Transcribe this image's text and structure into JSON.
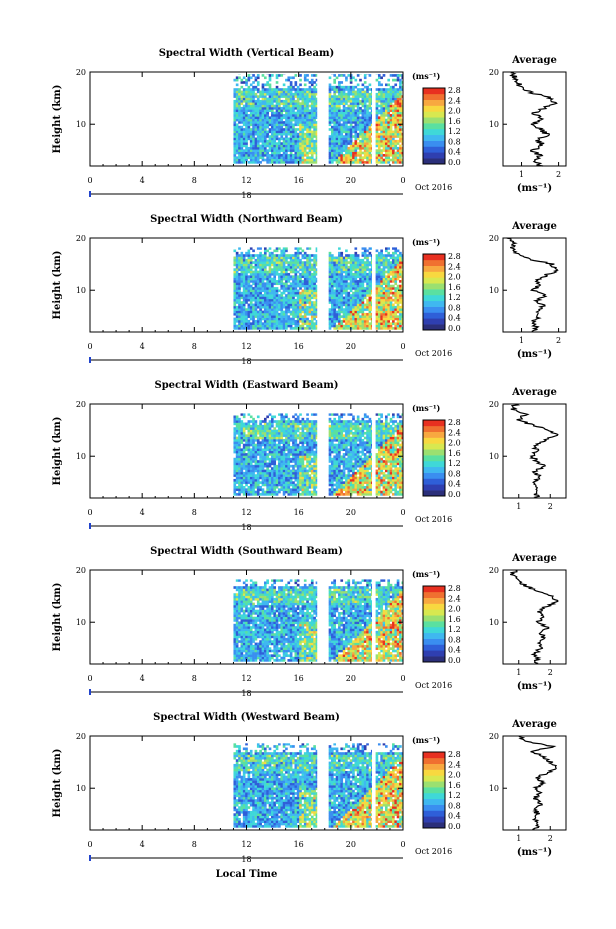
{
  "chart_data": [
    {
      "type": "heatmap",
      "title": "Spectral Width (Vertical Beam)",
      "ylabel": "Height (km)",
      "xticks": [
        "0",
        "4",
        "8",
        "12",
        "16",
        "20",
        "0"
      ],
      "xlim": [
        0,
        24
      ],
      "ylim": [
        2,
        20
      ],
      "yticks": [
        "20",
        "10"
      ],
      "date_label": "18",
      "month_label": "Oct 2016",
      "colorbar": {
        "unit": "(ms⁻¹)",
        "ticks": [
          "2.8",
          "2.4",
          "2.0",
          "1.6",
          "1.2",
          "0.8",
          "0.4",
          "0.0"
        ],
        "range": [
          0,
          2.8
        ]
      },
      "average": {
        "title": "Average",
        "xlabel": "(ms⁻¹)",
        "xticks": [
          "1",
          "2"
        ],
        "xlim": [
          0.5,
          2.2
        ],
        "yticks": [
          "20",
          "10"
        ],
        "profile": [
          [
            1.5,
            2
          ],
          [
            1.4,
            3
          ],
          [
            1.5,
            4
          ],
          [
            1.3,
            5
          ],
          [
            1.6,
            6
          ],
          [
            1.4,
            7
          ],
          [
            1.7,
            8
          ],
          [
            1.5,
            9
          ],
          [
            1.3,
            10
          ],
          [
            1.6,
            11
          ],
          [
            1.3,
            12
          ],
          [
            1.6,
            13
          ],
          [
            1.9,
            14
          ],
          [
            1.8,
            15
          ],
          [
            1.3,
            16
          ],
          [
            1.0,
            17
          ],
          [
            0.9,
            18
          ],
          [
            0.8,
            19
          ],
          [
            0.8,
            20
          ]
        ]
      }
    },
    {
      "type": "heatmap",
      "title": "Spectral Width (Northward Beam)",
      "ylabel": "Height (km)",
      "xticks": [
        "0",
        "4",
        "8",
        "12",
        "16",
        "20",
        "0"
      ],
      "xlim": [
        0,
        24
      ],
      "ylim": [
        2,
        20
      ],
      "yticks": [
        "20",
        "10"
      ],
      "date_label": "18",
      "month_label": "Oct 2016",
      "colorbar": {
        "unit": "(ms⁻¹)",
        "ticks": [
          "2.8",
          "2.4",
          "2.0",
          "1.6",
          "1.2",
          "0.8",
          "0.4",
          "0.0"
        ],
        "range": [
          0,
          2.8
        ]
      },
      "average": {
        "title": "Average",
        "xlabel": "(ms⁻¹)",
        "xticks": [
          "1",
          "2"
        ],
        "xlim": [
          0.5,
          2.2
        ],
        "yticks": [
          "20",
          "10"
        ],
        "profile": [
          [
            1.3,
            2
          ],
          [
            1.4,
            3
          ],
          [
            1.3,
            4
          ],
          [
            1.5,
            5
          ],
          [
            1.4,
            6
          ],
          [
            1.6,
            7
          ],
          [
            1.4,
            8
          ],
          [
            1.6,
            9
          ],
          [
            1.3,
            10
          ],
          [
            1.5,
            11
          ],
          [
            1.4,
            12
          ],
          [
            1.7,
            13
          ],
          [
            2.0,
            14
          ],
          [
            1.8,
            15
          ],
          [
            1.2,
            16
          ],
          [
            0.9,
            17
          ],
          [
            0.7,
            18
          ],
          [
            0.8,
            19
          ],
          [
            0.6,
            20
          ]
        ]
      }
    },
    {
      "type": "heatmap",
      "title": "Spectral Width (Eastward Beam)",
      "ylabel": "Height (km)",
      "xticks": [
        "0",
        "4",
        "8",
        "12",
        "16",
        "20",
        "0"
      ],
      "xlim": [
        0,
        24
      ],
      "ylim": [
        2,
        20
      ],
      "yticks": [
        "20",
        "10"
      ],
      "date_label": "18",
      "month_label": "Oct 2016",
      "colorbar": {
        "unit": "(ms⁻¹)",
        "ticks": [
          "2.8",
          "2.4",
          "2.0",
          "1.6",
          "1.2",
          "0.8",
          "0.4",
          "0.0"
        ],
        "range": [
          0,
          2.8
        ]
      },
      "average": {
        "title": "Average",
        "xlabel": "",
        "xticks": [
          "1",
          "2"
        ],
        "xlim": [
          0.5,
          2.5
        ],
        "yticks": [
          "20",
          "10"
        ],
        "profile": [
          [
            1.6,
            2
          ],
          [
            1.5,
            3
          ],
          [
            1.6,
            4
          ],
          [
            1.5,
            5
          ],
          [
            1.7,
            6
          ],
          [
            1.5,
            7
          ],
          [
            1.8,
            8
          ],
          [
            1.6,
            9
          ],
          [
            1.4,
            10
          ],
          [
            1.6,
            11
          ],
          [
            1.5,
            12
          ],
          [
            1.8,
            13
          ],
          [
            2.2,
            14
          ],
          [
            2.0,
            15
          ],
          [
            1.4,
            16
          ],
          [
            1.0,
            17
          ],
          [
            1.2,
            18
          ],
          [
            0.8,
            19
          ],
          [
            0.9,
            20
          ]
        ]
      }
    },
    {
      "type": "heatmap",
      "title": "Spectral Width (Southward Beam)",
      "ylabel": "Height (km)",
      "xticks": [
        "0",
        "4",
        "8",
        "12",
        "16",
        "20",
        "0"
      ],
      "xlim": [
        0,
        24
      ],
      "ylim": [
        2,
        20
      ],
      "yticks": [
        "20",
        "10"
      ],
      "date_label": "18",
      "month_label": "Oct 2016",
      "colorbar": {
        "unit": "(ms⁻¹)",
        "ticks": [
          "2.8",
          "2.4",
          "2.0",
          "1.6",
          "1.2",
          "0.8",
          "0.4",
          "0.0"
        ],
        "range": [
          0,
          2.8
        ]
      },
      "average": {
        "title": "Average",
        "xlabel": "(ms⁻¹)",
        "xticks": [
          "1",
          "2"
        ],
        "xlim": [
          0.5,
          2.5
        ],
        "yticks": [
          "20",
          "10"
        ],
        "profile": [
          [
            1.5,
            2
          ],
          [
            1.6,
            3
          ],
          [
            1.5,
            4
          ],
          [
            1.7,
            5
          ],
          [
            1.6,
            6
          ],
          [
            1.8,
            7
          ],
          [
            1.7,
            8
          ],
          [
            1.9,
            9
          ],
          [
            1.6,
            10
          ],
          [
            1.8,
            11
          ],
          [
            1.6,
            12
          ],
          [
            1.9,
            13
          ],
          [
            2.2,
            14
          ],
          [
            2.0,
            15
          ],
          [
            1.6,
            16
          ],
          [
            1.2,
            17
          ],
          [
            1.0,
            18
          ],
          [
            0.8,
            19
          ],
          [
            0.9,
            20
          ]
        ]
      }
    },
    {
      "type": "heatmap",
      "title": "Spectral Width (Westward Beam)",
      "ylabel": "Height (km)",
      "xlabel": "Local Time",
      "xticks": [
        "0",
        "4",
        "8",
        "12",
        "16",
        "20",
        "0"
      ],
      "xlim": [
        0,
        24
      ],
      "ylim": [
        2,
        20
      ],
      "yticks": [
        "20",
        "10"
      ],
      "date_label": "18",
      "month_label": "Oct 2016",
      "colorbar": {
        "unit": "(ms⁻¹)",
        "ticks": [
          "2.8",
          "2.4",
          "2.0",
          "1.6",
          "1.2",
          "0.8",
          "0.4",
          "0.0"
        ],
        "range": [
          0,
          2.8
        ]
      },
      "average": {
        "title": "Average",
        "xlabel": "(ms⁻¹)",
        "xticks": [
          "1",
          "2"
        ],
        "xlim": [
          0.5,
          2.5
        ],
        "yticks": [
          "20",
          "10"
        ],
        "profile": [
          [
            1.5,
            2
          ],
          [
            1.6,
            3
          ],
          [
            1.5,
            4
          ],
          [
            1.6,
            5
          ],
          [
            1.5,
            6
          ],
          [
            1.7,
            7
          ],
          [
            1.5,
            8
          ],
          [
            1.7,
            9
          ],
          [
            1.5,
            10
          ],
          [
            1.8,
            11
          ],
          [
            1.6,
            12
          ],
          [
            1.9,
            13
          ],
          [
            2.2,
            14
          ],
          [
            2.0,
            15
          ],
          [
            1.8,
            16
          ],
          [
            1.4,
            17
          ],
          [
            2.1,
            18
          ],
          [
            1.2,
            19
          ],
          [
            1.0,
            20
          ]
        ]
      }
    }
  ]
}
